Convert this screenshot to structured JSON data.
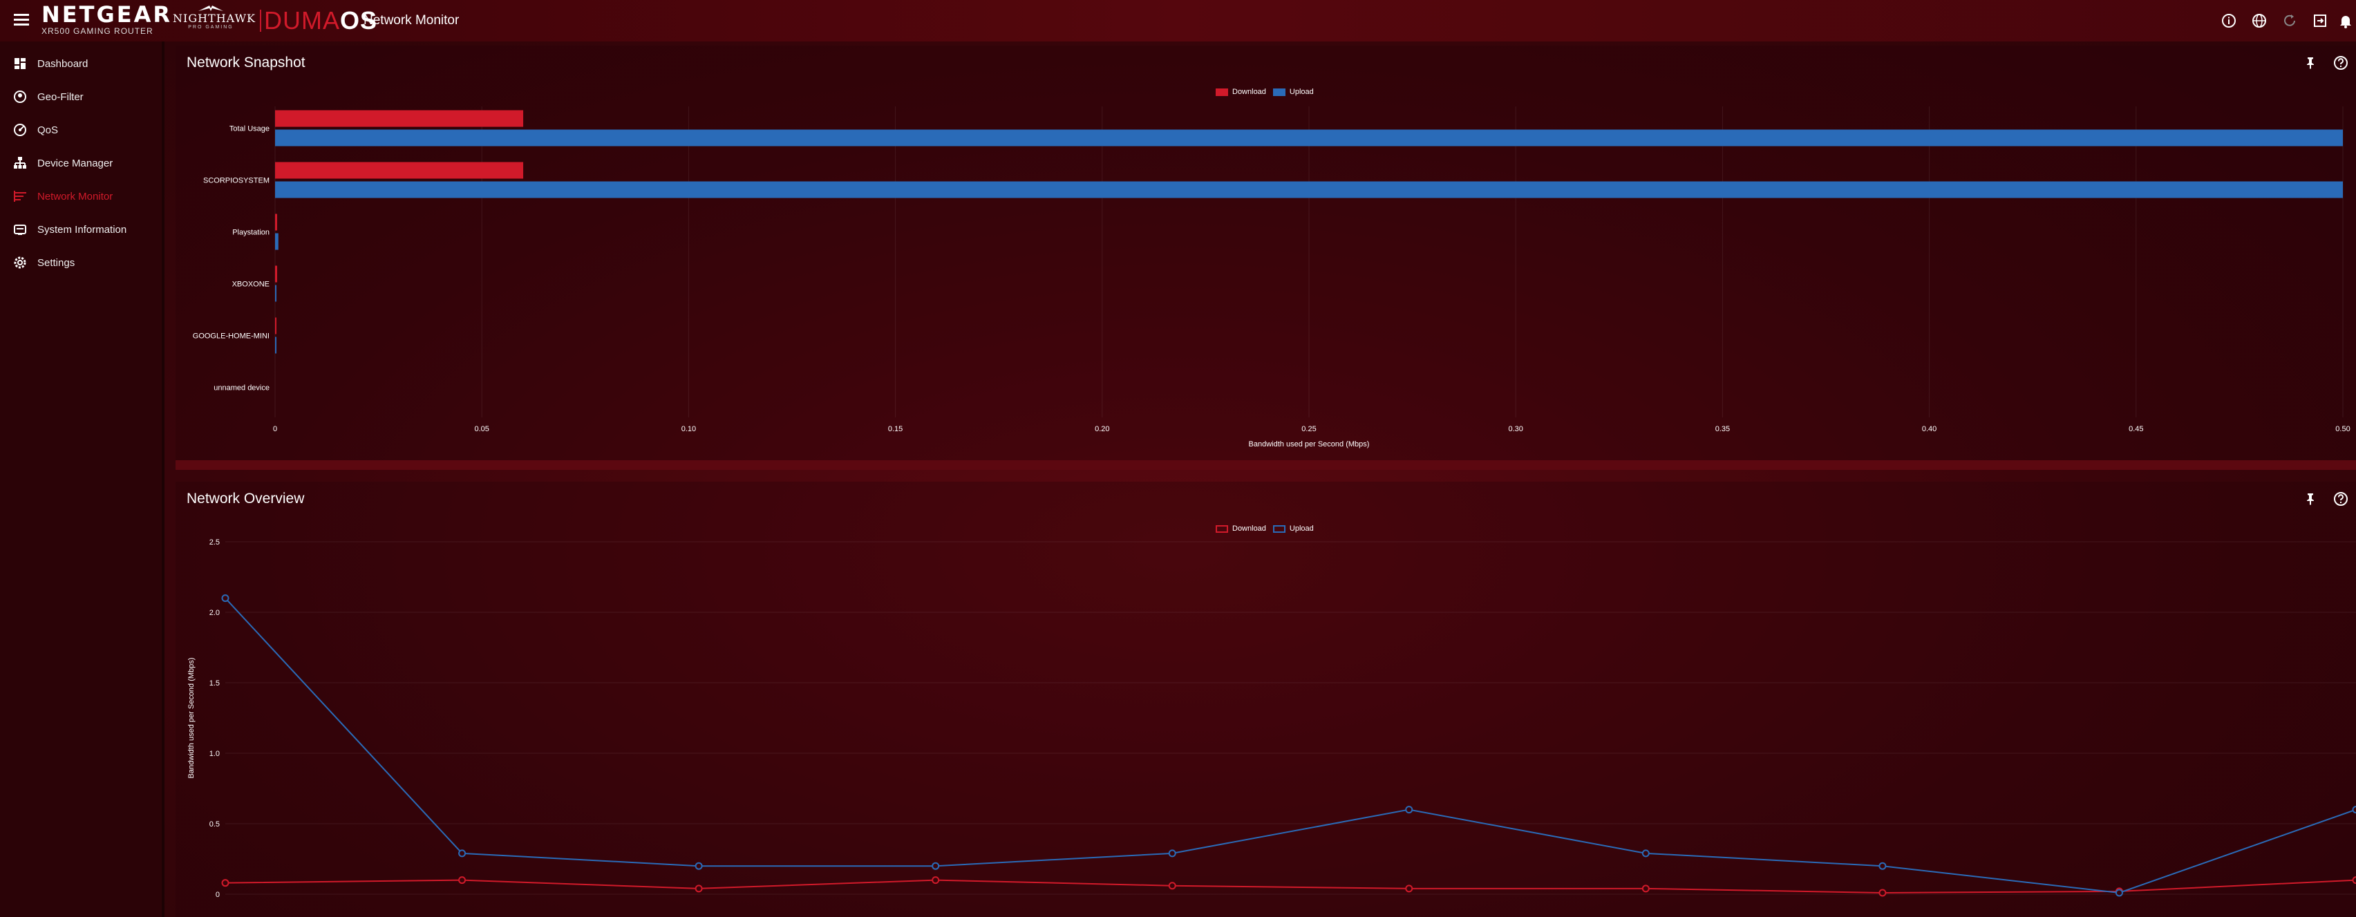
{
  "header": {
    "brand": "NETGEAR",
    "brand_sub": "XR500 GAMING ROUTER",
    "nighthawk": "NIGHTHAWK",
    "nighthawk_sub": "PRO GAMING",
    "duma_a": "DUMA",
    "duma_b": "OS",
    "title": "Network Monitor",
    "icons": [
      "info-icon",
      "globe-icon",
      "refresh-icon",
      "logout-icon",
      "bell-icon"
    ]
  },
  "sidebar": {
    "items": [
      {
        "label": "Dashboard",
        "icon": "dashboard-icon",
        "active": false
      },
      {
        "label": "Geo-Filter",
        "icon": "geo-filter-icon",
        "active": false
      },
      {
        "label": "QoS",
        "icon": "qos-icon",
        "active": false
      },
      {
        "label": "Device Manager",
        "icon": "device-manager-icon",
        "active": false
      },
      {
        "label": "Network Monitor",
        "icon": "network-monitor-icon",
        "active": true
      },
      {
        "label": "System Information",
        "icon": "system-information-icon",
        "active": false
      },
      {
        "label": "Settings",
        "icon": "settings-icon",
        "active": false
      }
    ]
  },
  "snapshot": {
    "title": "Network Snapshot",
    "legend": {
      "download": "Download",
      "upload": "Upload"
    }
  },
  "overview": {
    "title": "Network Overview",
    "legend": {
      "download": "Download",
      "upload": "Upload"
    }
  },
  "colors": {
    "download": "#d11a2a",
    "upload": "#2a6bb8",
    "accent": "#d11a2a"
  },
  "chart_data": [
    {
      "type": "bar",
      "orientation": "horizontal",
      "categories": [
        "Total Usage",
        "SCORPIOSYSTEM",
        "Playstation",
        "XBOXONE",
        "GOOGLE-HOME-MINI",
        "unnamed device"
      ],
      "series": [
        {
          "name": "Download",
          "values": [
            0.06,
            0.06,
            0.0005,
            0.0005,
            0.0002,
            0
          ]
        },
        {
          "name": "Upload",
          "values": [
            0.5,
            0.5,
            0.0008,
            0.0002,
            0.0001,
            0
          ]
        }
      ],
      "xlabel": "Bandwidth used per Second (Mbps)",
      "xlim": [
        0,
        0.5
      ],
      "xticks": [
        "0",
        "0.05",
        "0.10",
        "0.15",
        "0.20",
        "0.25",
        "0.30",
        "0.35",
        "0.40",
        "0.45",
        "0.50"
      ],
      "grid": true,
      "legend_position": "top-center"
    },
    {
      "type": "line",
      "x": [
        0,
        1,
        2,
        3,
        4,
        5,
        6,
        7,
        8,
        9
      ],
      "series": [
        {
          "name": "Download",
          "values": [
            0.08,
            0.1,
            0.04,
            0.1,
            0.06,
            0.04,
            0.04,
            0.01,
            0.02,
            0.1
          ]
        },
        {
          "name": "Upload",
          "values": [
            2.1,
            0.29,
            0.2,
            0.2,
            0.29,
            0.6,
            0.29,
            0.2,
            0.01,
            0.6
          ]
        }
      ],
      "ylabel": "Bandwidth used per Second (Mbps)",
      "ylim": [
        0,
        2.5
      ],
      "yticks": [
        "0",
        "0.5",
        "1.0",
        "1.5",
        "2.0",
        "2.5"
      ],
      "grid": true,
      "legend_position": "top-center"
    }
  ]
}
